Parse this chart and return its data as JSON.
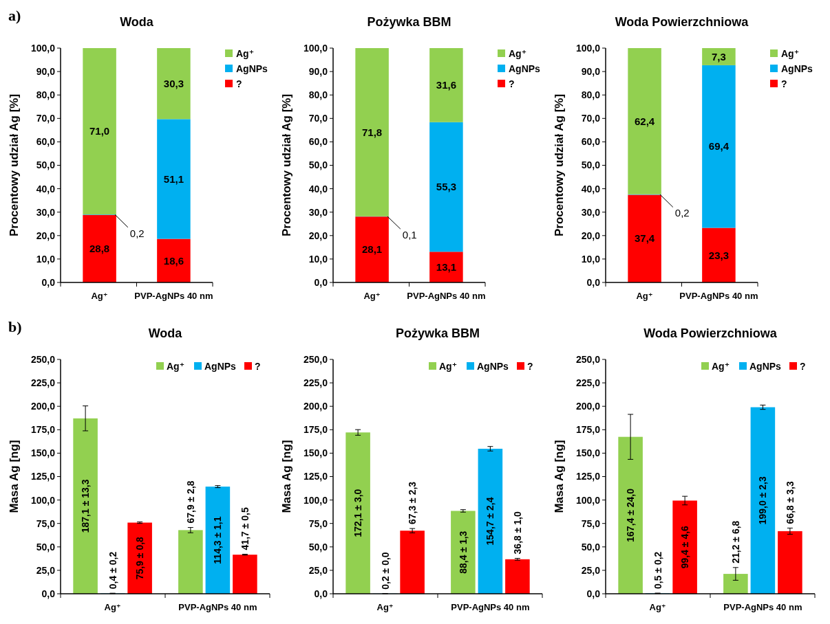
{
  "chart_data": [
    {
      "type": "bar",
      "title": "Woda",
      "ylabel": "Procentowy udział Ag [%]",
      "annotations": [
        "a)"
      ],
      "categories": [
        "Ag⁺",
        "PVP-AgNPs 40 nm"
      ],
      "stacked": true,
      "legend": "right",
      "ylim": [
        0,
        100
      ],
      "yticks": [
        {
          "value": 0,
          "label": "0,0"
        },
        {
          "value": 10,
          "label": "10,0"
        },
        {
          "value": 20,
          "label": "20,0"
        },
        {
          "value": 30,
          "label": "30,0"
        },
        {
          "value": 40,
          "label": "40,0"
        },
        {
          "value": 50,
          "label": "50,0"
        },
        {
          "value": 60,
          "label": "60,0"
        },
        {
          "value": 70,
          "label": "70,0"
        },
        {
          "value": 80,
          "label": "80,0"
        },
        {
          "value": 90,
          "label": "90,0"
        },
        {
          "value": 100,
          "label": "100,0"
        }
      ],
      "series": [
        {
          "name": "?",
          "color": "#ff0000",
          "values": [
            28.8,
            18.6
          ],
          "value_labels": [
            "28,8",
            "18,6"
          ]
        },
        {
          "name": "AgNPs",
          "color": "#00b0f0",
          "values": [
            0.2,
            51.1
          ],
          "value_labels": [
            "0,2",
            "51,1"
          ]
        },
        {
          "name": "Ag⁺",
          "color": "#92d050",
          "values": [
            71.0,
            30.3
          ],
          "value_labels": [
            "71,0",
            "30,3"
          ]
        }
      ]
    },
    {
      "type": "bar",
      "title": "Pożywka BBM",
      "ylabel": "Procentowy udział Ag [%]",
      "categories": [
        "Ag⁺",
        "PVP-AgNPs 40 nm"
      ],
      "stacked": true,
      "legend": "right",
      "ylim": [
        0,
        100
      ],
      "yticks": [
        {
          "value": 0,
          "label": "0,0"
        },
        {
          "value": 10,
          "label": "10,0"
        },
        {
          "value": 20,
          "label": "20,0"
        },
        {
          "value": 30,
          "label": "30,0"
        },
        {
          "value": 40,
          "label": "40,0"
        },
        {
          "value": 50,
          "label": "50,0"
        },
        {
          "value": 60,
          "label": "60,0"
        },
        {
          "value": 70,
          "label": "70,0"
        },
        {
          "value": 80,
          "label": "80,0"
        },
        {
          "value": 90,
          "label": "90,0"
        },
        {
          "value": 100,
          "label": "100,0"
        }
      ],
      "series": [
        {
          "name": "?",
          "color": "#ff0000",
          "values": [
            28.1,
            13.1
          ],
          "value_labels": [
            "28,1",
            "13,1"
          ]
        },
        {
          "name": "AgNPs",
          "color": "#00b0f0",
          "values": [
            0.1,
            55.3
          ],
          "value_labels": [
            "0,1",
            "55,3"
          ]
        },
        {
          "name": "Ag⁺",
          "color": "#92d050",
          "values": [
            71.8,
            31.6
          ],
          "value_labels": [
            "71,8",
            "31,6"
          ]
        }
      ]
    },
    {
      "type": "bar",
      "title": "Woda Powierzchniowa",
      "ylabel": "Procentowy udział Ag [%]",
      "categories": [
        "Ag⁺",
        "PVP-AgNPs 40 nm"
      ],
      "stacked": true,
      "legend": "right",
      "ylim": [
        0,
        100
      ],
      "yticks": [
        {
          "value": 0,
          "label": "0,0"
        },
        {
          "value": 10,
          "label": "10,0"
        },
        {
          "value": 20,
          "label": "20,0"
        },
        {
          "value": 30,
          "label": "30,0"
        },
        {
          "value": 40,
          "label": "40,0"
        },
        {
          "value": 50,
          "label": "50,0"
        },
        {
          "value": 60,
          "label": "60,0"
        },
        {
          "value": 70,
          "label": "70,0"
        },
        {
          "value": 80,
          "label": "80,0"
        },
        {
          "value": 90,
          "label": "90,0"
        },
        {
          "value": 100,
          "label": "100,0"
        }
      ],
      "series": [
        {
          "name": "?",
          "color": "#ff0000",
          "values": [
            37.4,
            23.3
          ],
          "value_labels": [
            "37,4",
            "23,3"
          ]
        },
        {
          "name": "AgNPs",
          "color": "#00b0f0",
          "values": [
            0.2,
            69.4
          ],
          "value_labels": [
            "0,2",
            "69,4"
          ]
        },
        {
          "name": "Ag⁺",
          "color": "#92d050",
          "values": [
            62.4,
            7.3
          ],
          "value_labels": [
            "62,4",
            "7,3"
          ]
        }
      ]
    },
    {
      "type": "bar",
      "title": "Woda",
      "ylabel": "Masa Ag [ng]",
      "annotations": [
        "b)"
      ],
      "categories": [
        "Ag⁺",
        "PVP-AgNPs 40 nm"
      ],
      "legend": "top right",
      "ylim": [
        0,
        250
      ],
      "yticks": [
        {
          "value": 0,
          "label": "0,0"
        },
        {
          "value": 25,
          "label": "25,0"
        },
        {
          "value": 50,
          "label": "50,0"
        },
        {
          "value": 75,
          "label": "75,0"
        },
        {
          "value": 100,
          "label": "100,0"
        },
        {
          "value": 125,
          "label": "125,0"
        },
        {
          "value": 150,
          "label": "150,0"
        },
        {
          "value": 175,
          "label": "175,0"
        },
        {
          "value": 200,
          "label": "200,0"
        },
        {
          "value": 225,
          "label": "225,0"
        },
        {
          "value": 250,
          "label": "250,0"
        }
      ],
      "series": [
        {
          "name": "Ag⁺",
          "color": "#92d050",
          "values": [
            187.1,
            67.9
          ],
          "errors": [
            13.3,
            2.8
          ],
          "value_labels": [
            "187,1 ± 13,3",
            "67,9 ± 2,8"
          ]
        },
        {
          "name": "AgNPs",
          "color": "#00b0f0",
          "values": [
            0.4,
            114.3
          ],
          "errors": [
            0.2,
            1.1
          ],
          "value_labels": [
            "0,4 ± 0,2",
            "114,3 ± 1,1"
          ]
        },
        {
          "name": "?",
          "color": "#ff0000",
          "values": [
            75.9,
            41.7
          ],
          "errors": [
            0.8,
            0.5
          ],
          "value_labels": [
            "75,9 ± 0,8",
            "41,7 ± 0,5"
          ]
        }
      ]
    },
    {
      "type": "bar",
      "title": "Pożywka BBM",
      "ylabel": "Masa Ag [ng]",
      "categories": [
        "Ag⁺",
        "PVP-AgNPs 40 nm"
      ],
      "legend": "top right",
      "ylim": [
        0,
        250
      ],
      "yticks": [
        {
          "value": 0,
          "label": "0,0"
        },
        {
          "value": 25,
          "label": "25,0"
        },
        {
          "value": 50,
          "label": "50,0"
        },
        {
          "value": 75,
          "label": "75,0"
        },
        {
          "value": 100,
          "label": "100,0"
        },
        {
          "value": 125,
          "label": "125,0"
        },
        {
          "value": 150,
          "label": "150,0"
        },
        {
          "value": 175,
          "label": "175,0"
        },
        {
          "value": 200,
          "label": "200,0"
        },
        {
          "value": 225,
          "label": "225,0"
        },
        {
          "value": 250,
          "label": "250,0"
        }
      ],
      "series": [
        {
          "name": "Ag⁺",
          "color": "#92d050",
          "values": [
            172.1,
            88.4
          ],
          "errors": [
            3.0,
            1.3
          ],
          "value_labels": [
            "172,1 ± 3,0",
            "88,4 ± 1,3"
          ]
        },
        {
          "name": "AgNPs",
          "color": "#00b0f0",
          "values": [
            0.2,
            154.7
          ],
          "errors": [
            0.0,
            2.4
          ],
          "value_labels": [
            "0,2 ± 0,0",
            "154,7 ± 2,4"
          ]
        },
        {
          "name": "?",
          "color": "#ff0000",
          "values": [
            67.3,
            36.8
          ],
          "errors": [
            2.3,
            1.0
          ],
          "value_labels": [
            "67,3 ± 2,3",
            "36,8 ± 1,0"
          ]
        }
      ]
    },
    {
      "type": "bar",
      "title": "Woda Powierzchniowa",
      "ylabel": "Masa Ag [ng]",
      "categories": [
        "Ag⁺",
        "PVP-AgNPs 40 nm"
      ],
      "legend": "top right",
      "ylim": [
        0,
        250
      ],
      "yticks": [
        {
          "value": 0,
          "label": "0,0"
        },
        {
          "value": 25,
          "label": "25,0"
        },
        {
          "value": 50,
          "label": "50,0"
        },
        {
          "value": 75,
          "label": "75,0"
        },
        {
          "value": 100,
          "label": "100,0"
        },
        {
          "value": 125,
          "label": "125,0"
        },
        {
          "value": 150,
          "label": "150,0"
        },
        {
          "value": 175,
          "label": "175,0"
        },
        {
          "value": 200,
          "label": "200,0"
        },
        {
          "value": 225,
          "label": "225,0"
        },
        {
          "value": 250,
          "label": "250,0"
        }
      ],
      "series": [
        {
          "name": "Ag⁺",
          "color": "#92d050",
          "values": [
            167.4,
            21.2
          ],
          "errors": [
            24.0,
            6.8
          ],
          "value_labels": [
            "167,4 ± 24,0",
            "21,2 ± 6,8"
          ]
        },
        {
          "name": "AgNPs",
          "color": "#00b0f0",
          "values": [
            0.5,
            199.0
          ],
          "errors": [
            0.2,
            2.3
          ],
          "value_labels": [
            "0,5 ± 0,2",
            "199,0 ± 2,3"
          ]
        },
        {
          "name": "?",
          "color": "#ff0000",
          "values": [
            99.4,
            66.8
          ],
          "errors": [
            4.6,
            3.3
          ],
          "value_labels": [
            "99,4 ± 4,6",
            "66,8 ± 3,3"
          ]
        }
      ]
    }
  ]
}
